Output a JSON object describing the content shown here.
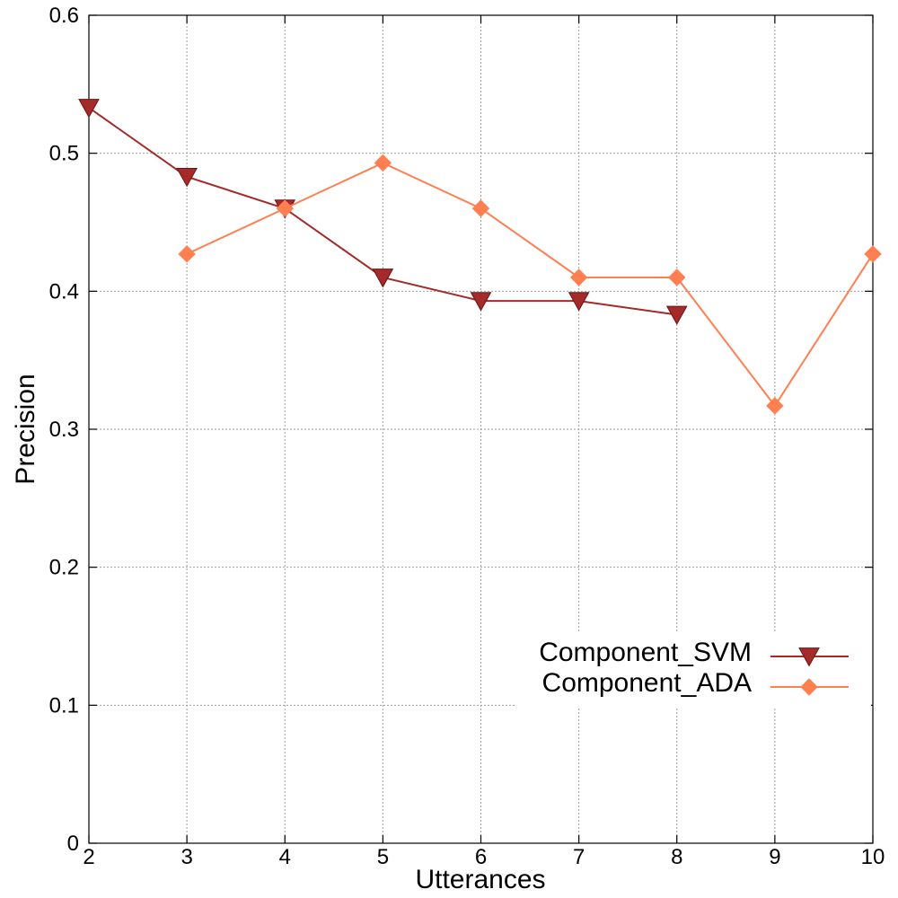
{
  "chart_data": {
    "type": "line",
    "title": "",
    "xlabel": "Utterances",
    "ylabel": "Precision",
    "xlim": [
      2,
      10
    ],
    "ylim": [
      0,
      0.6
    ],
    "xticks": [
      2,
      3,
      4,
      5,
      6,
      7,
      8,
      9,
      10
    ],
    "xtick_labels": [
      "2",
      "3",
      "4",
      "5",
      "6",
      "7",
      "8",
      "9",
      "10"
    ],
    "yticks": [
      0,
      0.1,
      0.2,
      0.3,
      0.4,
      0.5,
      0.6
    ],
    "ytick_labels": [
      "0",
      "0.1",
      "0.2",
      "0.3",
      "0.4",
      "0.5",
      "0.6"
    ],
    "grid": true,
    "legend_position": "lower-right",
    "series": [
      {
        "name": "Component_SVM",
        "color": "#a52a2a",
        "marker": "triangle-down",
        "x": [
          2,
          3,
          4,
          5,
          6,
          7,
          8
        ],
        "y": [
          0.533,
          0.483,
          0.46,
          0.41,
          0.393,
          0.393,
          0.383
        ]
      },
      {
        "name": "Component_ADA",
        "color": "#ff7f50",
        "marker": "diamond",
        "x": [
          3,
          4,
          5,
          6,
          7,
          8,
          9,
          10
        ],
        "y": [
          0.427,
          0.46,
          0.493,
          0.46,
          0.41,
          0.41,
          0.317,
          0.427
        ]
      }
    ]
  }
}
